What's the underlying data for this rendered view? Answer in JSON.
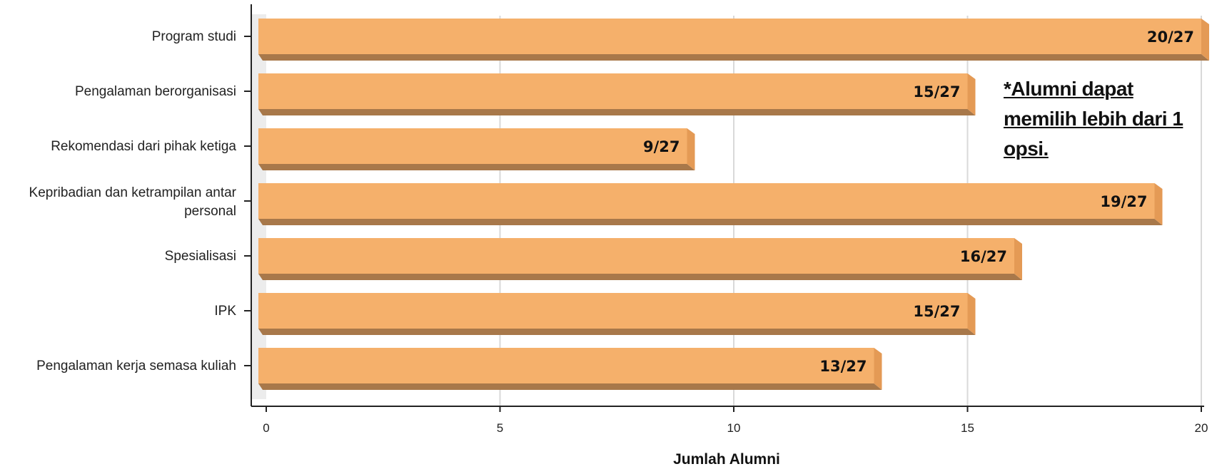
{
  "chart_data": {
    "type": "bar",
    "orientation": "horizontal",
    "categories": [
      "Program studi",
      "Pengalaman berorganisasi",
      "Rekomendasi dari pihak ketiga",
      "Kepribadian dan ketrampilan antar personal",
      "Spesialisasi",
      "IPK",
      "Pengalaman kerja semasa kuliah"
    ],
    "values": [
      20,
      15,
      9,
      19,
      16,
      15,
      13
    ],
    "data_labels": [
      "20/27",
      "15/27",
      "9/27",
      "19/27",
      "16/27",
      "15/27",
      "13/27"
    ],
    "xlabel": "Jumlah Alumni",
    "ylabel": "",
    "xlim": [
      0,
      20
    ],
    "xticks": [
      0,
      5,
      10,
      15,
      20
    ],
    "grid": "vertical",
    "bar_color": "#F5B06B",
    "bar_shadow_color": "#A8784A",
    "annotation": "*Alumni dapat memilih lebih dari 1 opsi."
  }
}
